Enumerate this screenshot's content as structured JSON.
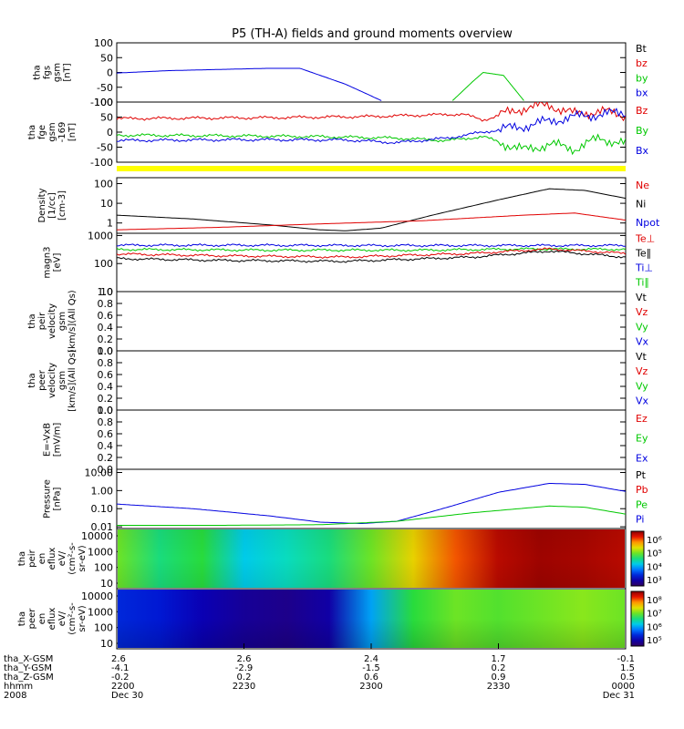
{
  "title": "P5 (TH-A) fields and ground moments overview",
  "colors": {
    "black": "#000000",
    "red": "#e00000",
    "green": "#00c800",
    "blue": "#0000e0",
    "yellow": "#ffff00"
  },
  "chart_data": [
    {
      "id": "fgs",
      "type": "line",
      "ylabel": [
        "tha",
        "fgs",
        "gsm",
        "[nT]"
      ],
      "yticks": [
        "100",
        "50",
        "0",
        "-50",
        "-100"
      ],
      "ylim": [
        -100,
        100
      ],
      "legend": [
        {
          "name": "Bt",
          "color": "black"
        },
        {
          "name": "bz",
          "color": "red"
        },
        {
          "name": "by",
          "color": "green"
        },
        {
          "name": "bx",
          "color": "blue"
        }
      ],
      "series": [
        {
          "name": "bx",
          "color": "blue",
          "x": [
            0,
            0.1,
            0.2,
            0.3,
            0.36,
            0.45,
            0.52
          ],
          "y": [
            -2,
            6,
            10,
            14,
            14,
            -40,
            -95
          ]
        },
        {
          "name": "by",
          "color": "green",
          "x": [
            0.66,
            0.7,
            0.72,
            0.76,
            0.8
          ],
          "y": [
            -95,
            -30,
            0,
            -10,
            -95
          ]
        }
      ]
    },
    {
      "id": "fge",
      "type": "line",
      "ylabel": [
        "tha",
        "fge",
        "gsm",
        "-169",
        "[nT]"
      ],
      "yticks": [
        "100",
        "50",
        "0",
        "-50",
        "-100"
      ],
      "ylim": [
        -100,
        100
      ],
      "legend": [
        {
          "name": "Bz",
          "color": "red"
        },
        {
          "name": "By",
          "color": "green"
        },
        {
          "name": "Bx",
          "color": "blue"
        }
      ],
      "series": [
        {
          "name": "Bz",
          "color": "red",
          "x": [
            0,
            0.3,
            0.5,
            0.68,
            0.72,
            0.8,
            0.85,
            0.9,
            0.95,
            1.0
          ],
          "y": [
            45,
            48,
            52,
            60,
            40,
            80,
            90,
            60,
            70,
            55
          ]
        },
        {
          "name": "By",
          "color": "green",
          "x": [
            0,
            0.2,
            0.4,
            0.55,
            0.65,
            0.72,
            0.8,
            0.85,
            0.9,
            0.95,
            1.0
          ],
          "y": [
            -10,
            -12,
            -15,
            -20,
            -28,
            -15,
            -60,
            -40,
            -55,
            -20,
            -40
          ]
        },
        {
          "name": "Bx",
          "color": "blue",
          "x": [
            0,
            0.25,
            0.45,
            0.55,
            0.65,
            0.72,
            0.8,
            0.86,
            0.92,
            1.0
          ],
          "y": [
            -28,
            -25,
            -26,
            -35,
            -20,
            0,
            20,
            40,
            55,
            65
          ]
        }
      ]
    },
    {
      "id": "density",
      "type": "line",
      "log": true,
      "ylabel": [
        "Density",
        "[1/cc]",
        "[cm-3]"
      ],
      "yticks": [
        "100",
        "10",
        "1"
      ],
      "ylim": [
        0.3,
        200
      ],
      "legend": [
        {
          "name": "Ne",
          "color": "red"
        },
        {
          "name": "Ni",
          "color": "black"
        },
        {
          "name": "Npot",
          "color": "blue"
        }
      ],
      "series": [
        {
          "name": "Ni",
          "color": "black",
          "x": [
            0,
            0.15,
            0.3,
            0.4,
            0.45,
            0.52,
            0.62,
            0.75,
            0.85,
            0.92,
            1.0
          ],
          "y": [
            2.5,
            1.6,
            0.8,
            0.45,
            0.4,
            0.55,
            2.5,
            15,
            55,
            45,
            18
          ]
        },
        {
          "name": "Ne",
          "color": "red",
          "x": [
            0,
            0.2,
            0.4,
            0.6,
            0.8,
            0.9,
            1.0
          ],
          "y": [
            0.45,
            0.6,
            0.9,
            1.3,
            2.5,
            3.2,
            1.4
          ]
        }
      ]
    },
    {
      "id": "temp",
      "type": "line",
      "log": true,
      "ylabel": [
        "magn3",
        "[eV]"
      ],
      "yticks": [
        "1000",
        "100",
        "10"
      ],
      "ylim": [
        10,
        1200
      ],
      "legend": [
        {
          "name": "Te⊥",
          "color": "red"
        },
        {
          "name": "Te∥",
          "color": "black"
        },
        {
          "name": "Ti⊥",
          "color": "blue"
        },
        {
          "name": "Ti∥",
          "color": "green"
        }
      ],
      "series": [
        {
          "name": "Ti⊥",
          "color": "blue",
          "x": [
            0,
            0.25,
            0.5,
            0.75,
            1.0
          ],
          "y": [
            450,
            450,
            440,
            440,
            440
          ]
        },
        {
          "name": "Ti∥",
          "color": "green",
          "x": [
            0,
            0.3,
            0.6,
            0.8,
            1.0
          ],
          "y": [
            320,
            300,
            300,
            330,
            320
          ]
        },
        {
          "name": "Te⊥",
          "color": "red",
          "x": [
            0,
            0.2,
            0.45,
            0.7,
            0.85,
            1.0
          ],
          "y": [
            220,
            190,
            170,
            230,
            330,
            230
          ]
        },
        {
          "name": "Te∥",
          "color": "black",
          "x": [
            0,
            0.2,
            0.45,
            0.7,
            0.85,
            1.0
          ],
          "y": [
            150,
            130,
            120,
            170,
            280,
            170
          ]
        }
      ]
    },
    {
      "id": "peir_vel",
      "type": "line",
      "ylabel": [
        "tha",
        "peir",
        "velocity",
        "gsm",
        "[km/s](All Qs)"
      ],
      "yticks": [
        "1.0",
        "0.8",
        "0.6",
        "0.4",
        "0.2",
        "0.0"
      ],
      "ylim": [
        0,
        1
      ],
      "legend": [
        {
          "name": "Vt",
          "color": "black"
        },
        {
          "name": "Vz",
          "color": "red"
        },
        {
          "name": "Vy",
          "color": "green"
        },
        {
          "name": "Vx",
          "color": "blue"
        }
      ],
      "series": []
    },
    {
      "id": "peer_vel",
      "type": "line",
      "ylabel": [
        "tha",
        "peer",
        "velocity",
        "gsm",
        "[km/s](All Qs)"
      ],
      "yticks": [
        "1.0",
        "0.8",
        "0.6",
        "0.4",
        "0.2",
        "0.0"
      ],
      "ylim": [
        0,
        1
      ],
      "legend": [
        {
          "name": "Vt",
          "color": "black"
        },
        {
          "name": "Vz",
          "color": "red"
        },
        {
          "name": "Vy",
          "color": "green"
        },
        {
          "name": "Vx",
          "color": "blue"
        }
      ],
      "series": []
    },
    {
      "id": "efield",
      "type": "line",
      "ylabel": [
        "E=-VxB",
        "[mV/m]"
      ],
      "yticks": [
        "1.0",
        "0.8",
        "0.6",
        "0.4",
        "0.2",
        "0.0"
      ],
      "ylim": [
        0,
        1
      ],
      "legend": [
        {
          "name": "Ez",
          "color": "red"
        },
        {
          "name": "Ey",
          "color": "green"
        },
        {
          "name": "Ex",
          "color": "blue"
        }
      ],
      "series": []
    },
    {
      "id": "pressure",
      "type": "line",
      "log": true,
      "ylabel": [
        "Pressure",
        "[nPa]"
      ],
      "yticks": [
        "10.00",
        "1.00",
        "0.10",
        "0.01"
      ],
      "ylim": [
        0.008,
        15
      ],
      "legend": [
        {
          "name": "Pt",
          "color": "black"
        },
        {
          "name": "Pb",
          "color": "red"
        },
        {
          "name": "Pe",
          "color": "green"
        },
        {
          "name": "Pi",
          "color": "blue"
        }
      ],
      "series": [
        {
          "name": "Pi",
          "color": "blue",
          "x": [
            0,
            0.15,
            0.3,
            0.4,
            0.48,
            0.55,
            0.65,
            0.75,
            0.85,
            0.92,
            1.0
          ],
          "y": [
            0.18,
            0.1,
            0.04,
            0.018,
            0.015,
            0.02,
            0.12,
            0.8,
            2.5,
            2.2,
            0.9
          ]
        },
        {
          "name": "Pe",
          "color": "green",
          "x": [
            0,
            0.2,
            0.4,
            0.55,
            0.7,
            0.85,
            0.92,
            1.0
          ],
          "y": [
            0.012,
            0.012,
            0.013,
            0.02,
            0.06,
            0.14,
            0.12,
            0.05
          ]
        }
      ]
    },
    {
      "id": "peir_spec",
      "type": "heatmap",
      "ylabel": [
        "tha",
        "peir",
        "en",
        "eflux",
        "eV/",
        "(cm²-s-",
        "sr-eV)"
      ],
      "yticks": [
        "10000",
        "1000",
        "100",
        "10"
      ],
      "cbar_ticks": [
        "10⁶",
        "10⁵",
        "10⁴",
        "10³"
      ],
      "columns": [
        0.6,
        0.5,
        0.55,
        0.4,
        0.45,
        0.5,
        0.6,
        0.72,
        0.85,
        0.95,
        0.98,
        0.97,
        0.95
      ]
    },
    {
      "id": "peer_spec",
      "type": "heatmap",
      "ylabel": [
        "tha",
        "peer",
        "en",
        "eflux",
        "eV/",
        "(cm²-s-",
        "sr-eV)"
      ],
      "yticks": [
        "10000",
        "1000",
        "100",
        "10"
      ],
      "cbar_ticks": [
        "10⁸",
        "10⁷",
        "10⁶",
        "10⁵"
      ],
      "columns": [
        0.2,
        0.18,
        0.12,
        0.08,
        0.06,
        0.1,
        0.35,
        0.55,
        0.6,
        0.58,
        0.6,
        0.62,
        0.6
      ]
    }
  ],
  "xaxis": {
    "rows": [
      {
        "label": "tha_X-GSM",
        "values": [
          "2.6",
          "2.6",
          "2.4",
          "1.7",
          "-0.1"
        ]
      },
      {
        "label": "tha_Y-GSM",
        "values": [
          "-4.1",
          "-2.9",
          "-1.5",
          "0.2",
          "1.5"
        ]
      },
      {
        "label": "tha_Z-GSM",
        "values": [
          "-0.2",
          "0.2",
          "0.6",
          "0.9",
          "0.5"
        ]
      },
      {
        "label": "hhmm",
        "values": [
          "2200",
          "2230",
          "2300",
          "2330",
          "0000"
        ]
      }
    ],
    "year": "2008",
    "date_start": "Dec 30",
    "date_end": "Dec 31"
  }
}
